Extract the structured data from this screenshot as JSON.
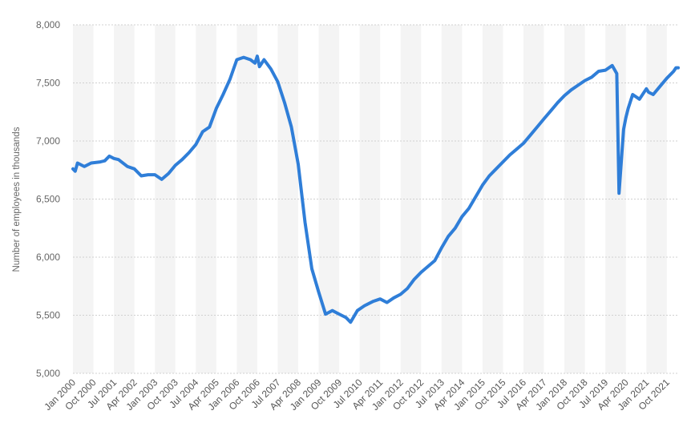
{
  "chart_data": {
    "type": "line",
    "title": "",
    "xlabel": "",
    "ylabel": "Number of employees in thousands",
    "ylim": [
      5000,
      8000
    ],
    "yticks": [
      5000,
      5500,
      6000,
      6500,
      7000,
      7500,
      8000
    ],
    "ytick_labels": [
      "5,000",
      "5,500",
      "6,000",
      "6,500",
      "7,000",
      "7,500",
      "8,000"
    ],
    "xlim": [
      "2000-01",
      "2022-03"
    ],
    "xtick_labels": [
      "Jan 2000",
      "Oct 2000",
      "Jul 2001",
      "Apr 2002",
      "Jan 2003",
      "Oct 2003",
      "Jul 2004",
      "Apr 2005",
      "Jan 2006",
      "Oct 2006",
      "Jul 2007",
      "Apr 2008",
      "Jan 2009",
      "Oct 2009",
      "Jul 2010",
      "Apr 2011",
      "Jan 2012",
      "Oct 2012",
      "Jul 2013",
      "Apr 2014",
      "Jan 2015",
      "Oct 2015",
      "Jul 2016",
      "Apr 2017",
      "Jan 2018",
      "Oct 2018",
      "Jul 2019",
      "Apr 2020",
      "Jan 2021",
      "Oct 2021"
    ],
    "xtick_dates": [
      "2000-01",
      "2000-10",
      "2001-07",
      "2002-04",
      "2003-01",
      "2003-10",
      "2004-07",
      "2005-04",
      "2006-01",
      "2006-10",
      "2007-07",
      "2008-04",
      "2009-01",
      "2009-10",
      "2010-07",
      "2011-04",
      "2012-01",
      "2012-10",
      "2013-07",
      "2014-04",
      "2015-01",
      "2015-10",
      "2016-07",
      "2017-04",
      "2018-01",
      "2018-10",
      "2019-07",
      "2020-04",
      "2021-01",
      "2021-10"
    ],
    "grid": true,
    "line_color": "#2f7ed8",
    "band_color": "#f4f4f4",
    "grid_color": "#d0d0d0",
    "series": [
      {
        "x": [
          "2000-01",
          "2000-02",
          "2000-03",
          "2000-06",
          "2000-09",
          "2001-01",
          "2001-03",
          "2001-05",
          "2001-07",
          "2001-09",
          "2002-01",
          "2002-04",
          "2002-07",
          "2002-10",
          "2003-01",
          "2003-04",
          "2003-07",
          "2003-10",
          "2004-01",
          "2004-04",
          "2004-07",
          "2004-10",
          "2005-01",
          "2005-04",
          "2005-07",
          "2005-10",
          "2006-01",
          "2006-04",
          "2006-07",
          "2006-09",
          "2006-10",
          "2006-11",
          "2007-01",
          "2007-04",
          "2007-07",
          "2007-10",
          "2008-01",
          "2008-04",
          "2008-07",
          "2008-10",
          "2009-01",
          "2009-04",
          "2009-07",
          "2009-10",
          "2010-01",
          "2010-03",
          "2010-06",
          "2010-09",
          "2010-10",
          "2011-01",
          "2011-04",
          "2011-07",
          "2011-10",
          "2012-01",
          "2012-04",
          "2012-07",
          "2012-10",
          "2013-01",
          "2013-04",
          "2013-07",
          "2013-10",
          "2014-01",
          "2014-04",
          "2014-07",
          "2014-10",
          "2015-01",
          "2015-04",
          "2015-07",
          "2015-10",
          "2016-01",
          "2016-04",
          "2016-07",
          "2016-10",
          "2017-01",
          "2017-04",
          "2017-07",
          "2017-10",
          "2018-01",
          "2018-04",
          "2018-07",
          "2018-10",
          "2019-01",
          "2019-04",
          "2019-07",
          "2019-10",
          "2019-12",
          "2020-01",
          "2020-03",
          "2020-04",
          "2020-05",
          "2020-07",
          "2020-10",
          "2021-01",
          "2021-02",
          "2021-04",
          "2021-07",
          "2021-10",
          "2022-01",
          "2022-02",
          "2022-03"
        ],
        "values": [
          6760,
          6740,
          6810,
          6780,
          6810,
          6820,
          6830,
          6870,
          6850,
          6840,
          6780,
          6760,
          6700,
          6710,
          6710,
          6670,
          6720,
          6790,
          6840,
          6900,
          6970,
          7080,
          7120,
          7280,
          7400,
          7530,
          7700,
          7720,
          7700,
          7670,
          7730,
          7640,
          7700,
          7620,
          7510,
          7330,
          7120,
          6800,
          6300,
          5900,
          5700,
          5510,
          5540,
          5510,
          5480,
          5440,
          5540,
          5580,
          5590,
          5620,
          5640,
          5610,
          5650,
          5680,
          5730,
          5810,
          5870,
          5920,
          5970,
          6080,
          6180,
          6250,
          6350,
          6420,
          6520,
          6620,
          6700,
          6760,
          6820,
          6880,
          6930,
          6980,
          7050,
          7120,
          7190,
          7260,
          7330,
          7390,
          7440,
          7480,
          7520,
          7550,
          7600,
          7610,
          7650,
          7580,
          6550,
          7100,
          7200,
          7280,
          7400,
          7360,
          7450,
          7420,
          7400,
          7470,
          7540,
          7600,
          7630,
          7630
        ]
      }
    ]
  }
}
